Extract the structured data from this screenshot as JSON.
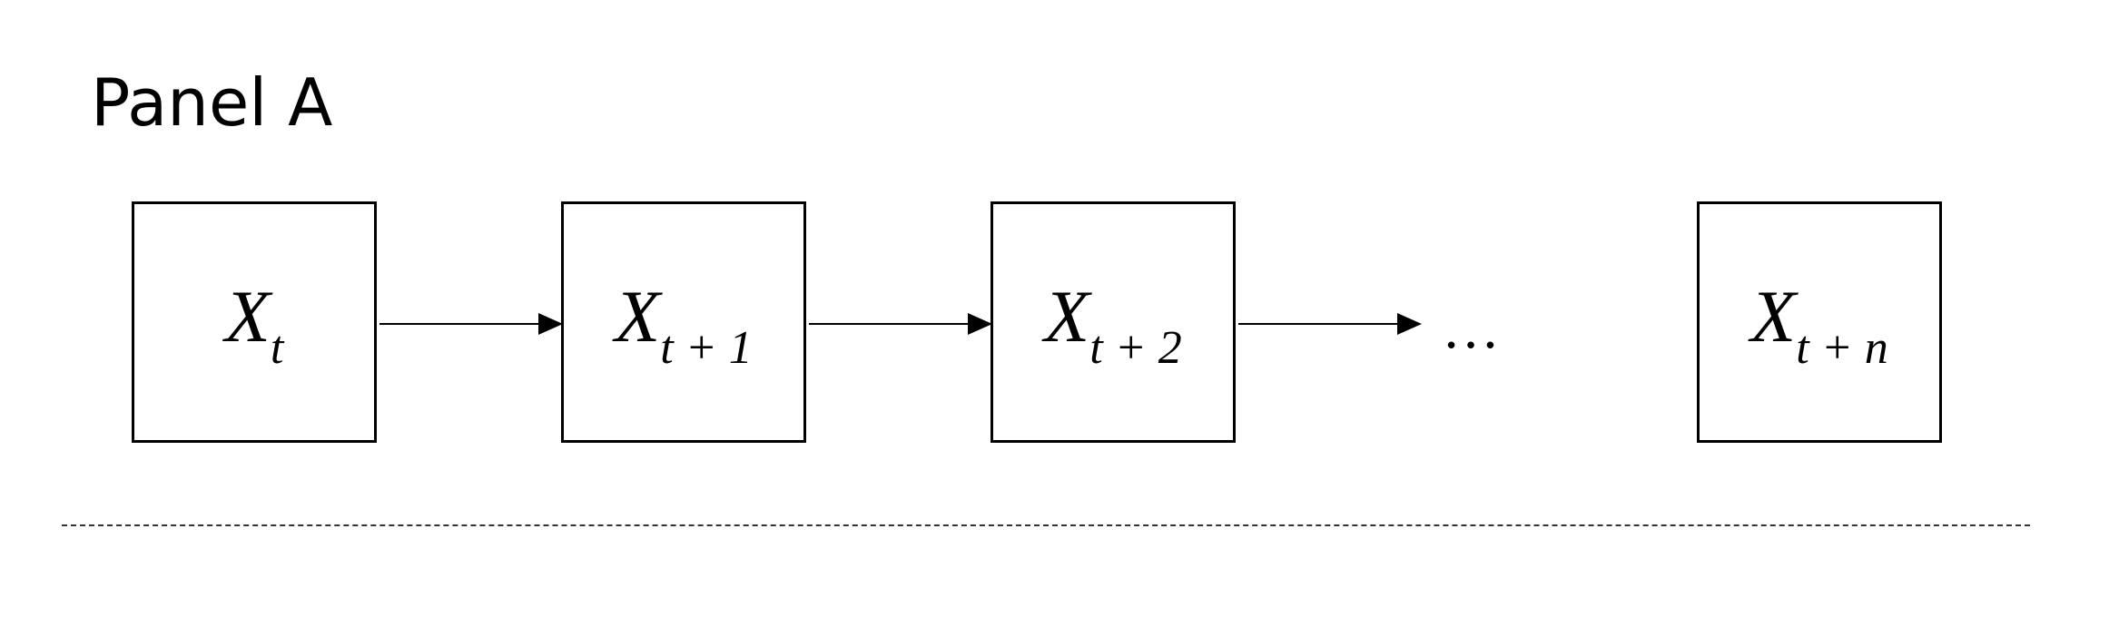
{
  "panel": {
    "title": "Panel A"
  },
  "nodes": [
    {
      "main": "X",
      "sub": "t"
    },
    {
      "main": "X",
      "sub": "t + 1"
    },
    {
      "main": "X",
      "sub": "t + 2"
    },
    {
      "main": "X",
      "sub": "t + n"
    }
  ],
  "ellipsis": "…",
  "colors": {
    "stroke": "#000000",
    "background": "#ffffff",
    "divider": "#333333"
  }
}
